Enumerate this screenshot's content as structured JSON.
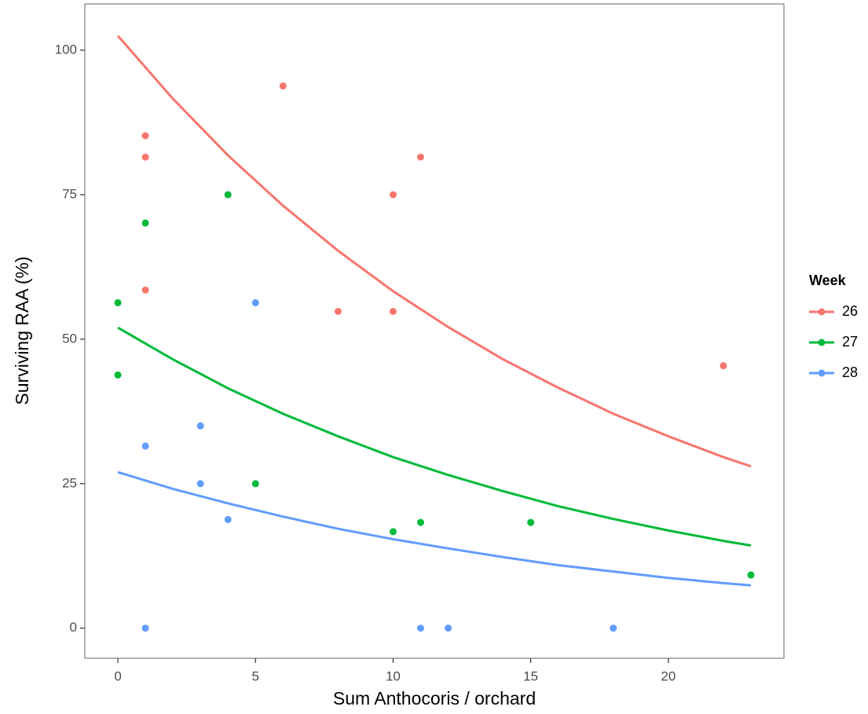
{
  "chart_data": {
    "type": "scatter",
    "x_label": "Sum Anthocoris / orchard",
    "y_label": "Surviving RAA (%)",
    "legend_title": "Week",
    "legend_position": "right",
    "xlim": [
      -1.2,
      24.2
    ],
    "xticks": [
      0,
      5,
      10,
      15,
      20
    ],
    "ylim": [
      -5.2,
      108
    ],
    "yticks": [
      0,
      25,
      50,
      75,
      100
    ],
    "grid": false,
    "fit_x": [
      0,
      2,
      4,
      6,
      8,
      10,
      12,
      14,
      16,
      18,
      20,
      22,
      23
    ],
    "series": [
      {
        "name": "26",
        "color": "#F8766D",
        "x": [
          1,
          1,
          1,
          6,
          10,
          11,
          8,
          10,
          22
        ],
        "values": [
          85.2,
          81.5,
          58.5,
          93.8,
          75,
          81.5,
          54.8,
          54.8,
          45.4
        ],
        "fit": [
          102.5,
          91.6,
          81.8,
          73.1,
          65.3,
          58.3,
          52.1,
          46.5,
          41.6,
          37.1,
          33.2,
          29.6,
          28.0
        ]
      },
      {
        "name": "27",
        "color": "#00BA38",
        "x": [
          0,
          0,
          1,
          4,
          5,
          10,
          11,
          15,
          23
        ],
        "values": [
          56.3,
          43.8,
          70.1,
          75,
          25,
          16.7,
          18.3,
          18.3,
          9.2
        ],
        "fit": [
          52,
          46.5,
          41.5,
          37.1,
          33.2,
          29.6,
          26.5,
          23.7,
          21.1,
          18.9,
          16.9,
          15.1,
          14.3
        ]
      },
      {
        "name": "28",
        "color": "#619CFF",
        "x": [
          1,
          3,
          3,
          4,
          5,
          1,
          11,
          12,
          18
        ],
        "values": [
          31.5,
          35,
          25,
          18.8,
          56.3,
          0,
          0,
          0,
          0
        ],
        "fit": [
          27,
          24.1,
          21.6,
          19.3,
          17.2,
          15.4,
          13.8,
          12.3,
          10.9,
          9.8,
          8.7,
          7.8,
          7.4
        ]
      }
    ]
  }
}
